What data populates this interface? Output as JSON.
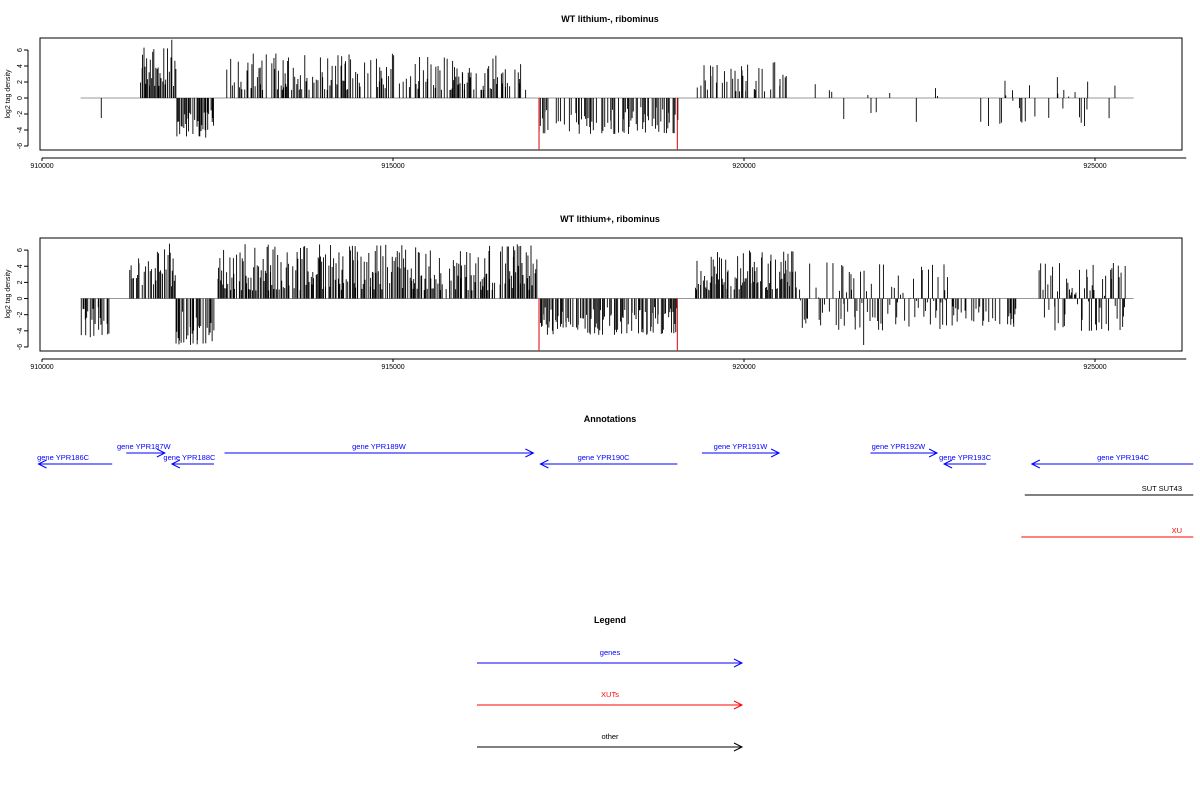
{
  "chart_data": [
    {
      "type": "bar",
      "title": "WT lithium-, ribominus",
      "ylabel": "log2 tag density",
      "xlabel": "",
      "xlim": [
        910000,
        926300
      ],
      "ylim": [
        -6.5,
        7.5
      ],
      "xticks": [
        "910000",
        "915000",
        "920000",
        "925000"
      ],
      "yticks": [
        "6",
        "4",
        "2",
        "0",
        "-2",
        "-4",
        "-6"
      ],
      "baseline": 0,
      "grid": false,
      "red_markers": [
        {
          "x": 917080,
          "y": -6.4
        },
        {
          "x": 919050,
          "y": -6.4
        }
      ],
      "segments": [
        {
          "x0": 910550,
          "x1": 910950,
          "lo": -3.3,
          "hi": -1.0,
          "density": 0.12
        },
        {
          "x0": 911400,
          "x1": 911900,
          "lo": 1.5,
          "hi": 7.3,
          "density": 0.8
        },
        {
          "x0": 911900,
          "x1": 912450,
          "lo": -5.0,
          "hi": -1.5,
          "density": 0.8
        },
        {
          "x0": 912600,
          "x1": 916900,
          "lo": 1.0,
          "hi": 5.6,
          "density": 0.6
        },
        {
          "x0": 917080,
          "x1": 919050,
          "lo": -4.5,
          "hi": -1.0,
          "density": 0.55
        },
        {
          "x0": 919300,
          "x1": 920600,
          "lo": 0.8,
          "hi": 4.5,
          "density": 0.4
        },
        {
          "x0": 920700,
          "x1": 922800,
          "lo": -3.0,
          "hi": 3.2,
          "density": 0.08
        },
        {
          "x0": 923200,
          "x1": 925300,
          "lo": -3.5,
          "hi": 3.2,
          "density": 0.15
        }
      ]
    },
    {
      "type": "bar",
      "title": "WT lithium+, ribominus",
      "ylabel": "log2 tag density",
      "xlabel": "",
      "xlim": [
        910000,
        926300
      ],
      "ylim": [
        -6.5,
        7.5
      ],
      "xticks": [
        "910000",
        "915000",
        "920000",
        "925000"
      ],
      "yticks": [
        "6",
        "4",
        "2",
        "0",
        "-2",
        "-4",
        "-6"
      ],
      "baseline": 0,
      "grid": false,
      "red_markers": [
        {
          "x": 917080,
          "y": -6.4
        },
        {
          "x": 919050,
          "y": -6.4
        }
      ],
      "segments": [
        {
          "x0": 910550,
          "x1": 910950,
          "lo": -4.8,
          "hi": -1.0,
          "density": 0.7
        },
        {
          "x0": 911250,
          "x1": 911900,
          "lo": 1.5,
          "hi": 7.0,
          "density": 0.8
        },
        {
          "x0": 911900,
          "x1": 912450,
          "lo": -5.8,
          "hi": -1.5,
          "density": 0.8
        },
        {
          "x0": 912500,
          "x1": 917050,
          "lo": 1.0,
          "hi": 6.8,
          "density": 0.85
        },
        {
          "x0": 917080,
          "x1": 919050,
          "lo": -4.5,
          "hi": -1.0,
          "density": 0.7
        },
        {
          "x0": 919300,
          "x1": 920800,
          "lo": 1.0,
          "hi": 6.0,
          "density": 0.8
        },
        {
          "x0": 920800,
          "x1": 922900,
          "lo": -4.0,
          "hi": 4.5,
          "density": 0.6
        },
        {
          "x0": 921700,
          "x1": 921750,
          "lo": -6.2,
          "hi": -3.0,
          "density": 0.5
        },
        {
          "x0": 922900,
          "x1": 923900,
          "lo": -3.5,
          "hi": -0.8,
          "density": 0.35
        },
        {
          "x0": 924200,
          "x1": 925450,
          "lo": -4.0,
          "hi": 4.5,
          "density": 0.7
        }
      ]
    }
  ],
  "annotations": {
    "title": "Annotations",
    "items": [
      {
        "label": "gene YPR186C",
        "x0": 909950,
        "x1": 911000,
        "row": 1,
        "dir": "left",
        "color": "#0000ff",
        "lx": 910300
      },
      {
        "label": "gene YPR187W",
        "x0": 911200,
        "x1": 911750,
        "row": 0,
        "dir": "right",
        "color": "#0000ff",
        "lx": 911450
      },
      {
        "label": "gene YPR188C",
        "x0": 911850,
        "x1": 912450,
        "row": 1,
        "dir": "left",
        "color": "#0000ff",
        "lx": 912100
      },
      {
        "label": "gene YPR189W",
        "x0": 912600,
        "x1": 917000,
        "row": 0,
        "dir": "right",
        "color": "#0000ff",
        "lx": 914800
      },
      {
        "label": "gene YPR190C",
        "x0": 917100,
        "x1": 919050,
        "row": 1,
        "dir": "left",
        "color": "#0000ff",
        "lx": 918000
      },
      {
        "label": "gene YPR191W",
        "x0": 919400,
        "x1": 920500,
        "row": 0,
        "dir": "right",
        "color": "#0000ff",
        "lx": 919950
      },
      {
        "label": "gene YPR192W",
        "x0": 921800,
        "x1": 922750,
        "row": 0,
        "dir": "right",
        "color": "#0000ff",
        "lx": 922200
      },
      {
        "label": "gene YPR193C",
        "x0": 922850,
        "x1": 923450,
        "row": 1,
        "dir": "left",
        "color": "#0000ff",
        "lx": 923150
      },
      {
        "label": "gene YPR194C",
        "x0": 924100,
        "x1": 926400,
        "row": 1,
        "dir": "left",
        "color": "#0000ff",
        "lx": 925400
      },
      {
        "label": "SUT SUT43",
        "x0": 924000,
        "x1": 926400,
        "row": 2,
        "dir": "none",
        "color": "#000000",
        "lx": 925950
      },
      {
        "label": "XU",
        "x0": 923950,
        "x1": 926400,
        "row": 3,
        "dir": "none",
        "color": "#ff0000",
        "lx": 926150
      }
    ]
  },
  "legend": {
    "title": "Legend",
    "items": [
      {
        "label": "genes",
        "color": "#0000ff"
      },
      {
        "label": "XUTs",
        "color": "#ff0000"
      },
      {
        "label": "other",
        "color": "#000000"
      }
    ]
  }
}
